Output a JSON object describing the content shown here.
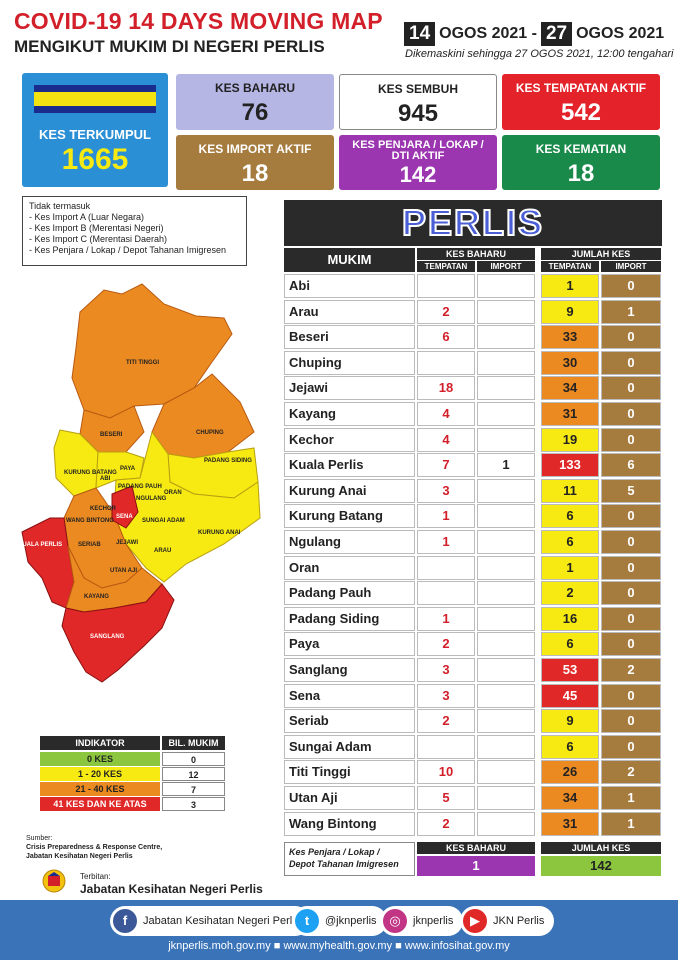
{
  "header": {
    "title": "COVID-19 14 DAYS MOVING MAP",
    "subtitle": "MENGIKUT MUKIM DI NEGERI PERLIS",
    "date_start_day": "14",
    "date_start_rest": "OGOS 2021 -",
    "date_end_day": "27",
    "date_end_rest": "OGOS 2021",
    "updated": "Dikemaskini sehingga 27 OGOS 2021, 12:00 tengahari"
  },
  "cards": {
    "total_label": "KES TERKUMPUL",
    "total_value": "1665",
    "baharu_label": "KES BAHARU",
    "baharu_value": "76",
    "sembuh_label": "KES SEMBUH",
    "sembuh_value": "945",
    "tempatan_label": "KES TEMPATAN AKTIF",
    "tempatan_value": "542",
    "import_label": "KES IMPORT AKTIF",
    "import_value": "18",
    "penjara_label1": "KES PENJARA / LOKAP /",
    "penjara_label2": "DTI AKTIF",
    "penjara_value": "142",
    "kematian_label": "KES KEMATIAN",
    "kematian_value": "18"
  },
  "note": {
    "title": "Tidak termasuk",
    "items": [
      "- Kes Import A (Luar Negara)",
      "- Kes Import B (Merentasi Negeri)",
      "- Kes Import C (Merentasi Daerah)",
      "- Kes Penjara / Lokap / Depot Tahanan Imigresen"
    ]
  },
  "map_labels": {
    "titi_tinggi": "TITI TINGGI",
    "beseri": "BESERI",
    "chuping": "CHUPING",
    "kurung_batang": "KURUNG BATANG",
    "paya": "PAYA",
    "abi": "ABI",
    "padang_pauh": "PADANG PAUH",
    "ngulang": "NGULANG",
    "oran": "ORAN",
    "padang_siding": "PADANG SIDING",
    "wang_bintong": "WANG BINTONG",
    "kechor": "KECHOR",
    "sena": "SENA",
    "sungai_adam": "SUNGAI ADAM",
    "kurung_anai": "KURUNG ANAI",
    "kuala_perlis": "KUALA PERLIS",
    "seriab": "SERIAB",
    "jejawi": "JEJAWI",
    "arau": "ARAU",
    "utan_aji": "UTAN AJI",
    "kayang": "KAYANG",
    "sanglang": "SANGLANG"
  },
  "table": {
    "state": "PERLIS",
    "col_mukim": "MUKIM",
    "col_kes_baharu": "KES BAHARU",
    "col_jumlah": "JUMLAH KES",
    "sub_tempatan": "TEMPATAN",
    "sub_import": "IMPORT",
    "rows": [
      {
        "name": "Abi",
        "tem": "",
        "imp": "",
        "jt": "1",
        "ji": "0",
        "color": "#f6ea12"
      },
      {
        "name": "Arau",
        "tem": "2",
        "imp": "",
        "jt": "9",
        "ji": "1",
        "color": "#f6ea12"
      },
      {
        "name": "Beseri",
        "tem": "6",
        "imp": "",
        "jt": "33",
        "ji": "0",
        "color": "#ec8a22"
      },
      {
        "name": "Chuping",
        "tem": "",
        "imp": "",
        "jt": "30",
        "ji": "0",
        "color": "#ec8a22"
      },
      {
        "name": "Jejawi",
        "tem": "18",
        "imp": "",
        "jt": "34",
        "ji": "0",
        "color": "#ec8a22"
      },
      {
        "name": "Kayang",
        "tem": "4",
        "imp": "",
        "jt": "31",
        "ji": "0",
        "color": "#ec8a22"
      },
      {
        "name": "Kechor",
        "tem": "4",
        "imp": "",
        "jt": "19",
        "ji": "0",
        "color": "#f6ea12"
      },
      {
        "name": "Kuala Perlis",
        "tem": "7",
        "imp": "1",
        "jt": "133",
        "ji": "6",
        "color": "#e02828"
      },
      {
        "name": "Kurung Anai",
        "tem": "3",
        "imp": "",
        "jt": "11",
        "ji": "5",
        "color": "#f6ea12"
      },
      {
        "name": "Kurung Batang",
        "tem": "1",
        "imp": "",
        "jt": "6",
        "ji": "0",
        "color": "#f6ea12"
      },
      {
        "name": "Ngulang",
        "tem": "1",
        "imp": "",
        "jt": "6",
        "ji": "0",
        "color": "#f6ea12"
      },
      {
        "name": "Oran",
        "tem": "",
        "imp": "",
        "jt": "1",
        "ji": "0",
        "color": "#f6ea12"
      },
      {
        "name": "Padang Pauh",
        "tem": "",
        "imp": "",
        "jt": "2",
        "ji": "0",
        "color": "#f6ea12"
      },
      {
        "name": "Padang Siding",
        "tem": "1",
        "imp": "",
        "jt": "16",
        "ji": "0",
        "color": "#f6ea12"
      },
      {
        "name": "Paya",
        "tem": "2",
        "imp": "",
        "jt": "6",
        "ji": "0",
        "color": "#f6ea12"
      },
      {
        "name": "Sanglang",
        "tem": "3",
        "imp": "",
        "jt": "53",
        "ji": "2",
        "color": "#e02828"
      },
      {
        "name": "Sena",
        "tem": "3",
        "imp": "",
        "jt": "45",
        "ji": "0",
        "color": "#e02828"
      },
      {
        "name": "Seriab",
        "tem": "2",
        "imp": "",
        "jt": "9",
        "ji": "0",
        "color": "#f6ea12"
      },
      {
        "name": "Sungai Adam",
        "tem": "",
        "imp": "",
        "jt": "6",
        "ji": "0",
        "color": "#f6ea12"
      },
      {
        "name": "Titi Tinggi",
        "tem": "10",
        "imp": "",
        "jt": "26",
        "ji": "2",
        "color": "#ec8a22"
      },
      {
        "name": "Utan Aji",
        "tem": "5",
        "imp": "",
        "jt": "34",
        "ji": "1",
        "color": "#ec8a22"
      },
      {
        "name": "Wang Bintong",
        "tem": "2",
        "imp": "",
        "jt": "31",
        "ji": "1",
        "color": "#ec8a22"
      }
    ]
  },
  "penjara": {
    "label1": "Kes Penjara / Lokap /",
    "label2": "Depot Tahanan Imigresen",
    "baharu_label": "KES BAHARU",
    "baharu_value": "1",
    "jumlah_label": "JUMLAH KES",
    "jumlah_value": "142"
  },
  "legend": {
    "col_indikator": "INDIKATOR",
    "col_bil": "BIL. MUKIM",
    "rows": [
      {
        "label": "0 KES",
        "value": "0",
        "color": "#8cc63f"
      },
      {
        "label": "1 - 20 KES",
        "value": "12",
        "color": "#f6ea12"
      },
      {
        "label": "21 - 40 KES",
        "value": "7",
        "color": "#ec8a22"
      },
      {
        "label": "41 KES DAN KE ATAS",
        "value": "3",
        "color": "#e02828"
      }
    ]
  },
  "source": {
    "label": "Sumber:",
    "line1": "Crisis Preparedness & Response Centre,",
    "line2": "Jabatan Kesihatan Negeri Perlis",
    "terbitan": "Terbitan:",
    "publisher": "Jabatan Kesihatan Negeri Perlis"
  },
  "footer": {
    "fb": "Jabatan Kesihatan Negeri Perlis",
    "tw": "@jknperlis",
    "ig": "jknperlis",
    "yt": "JKN Perlis",
    "urls": "jknperlis.moh.gov.my ■ www.myhealth.gov.my ■ www.infosihat.gov.my"
  },
  "colors": {
    "red": "#d21f2a",
    "yellow": "#f6ea12",
    "orange": "#ec8a22",
    "green": "#8cc63f",
    "brown": "#a67b3e"
  }
}
